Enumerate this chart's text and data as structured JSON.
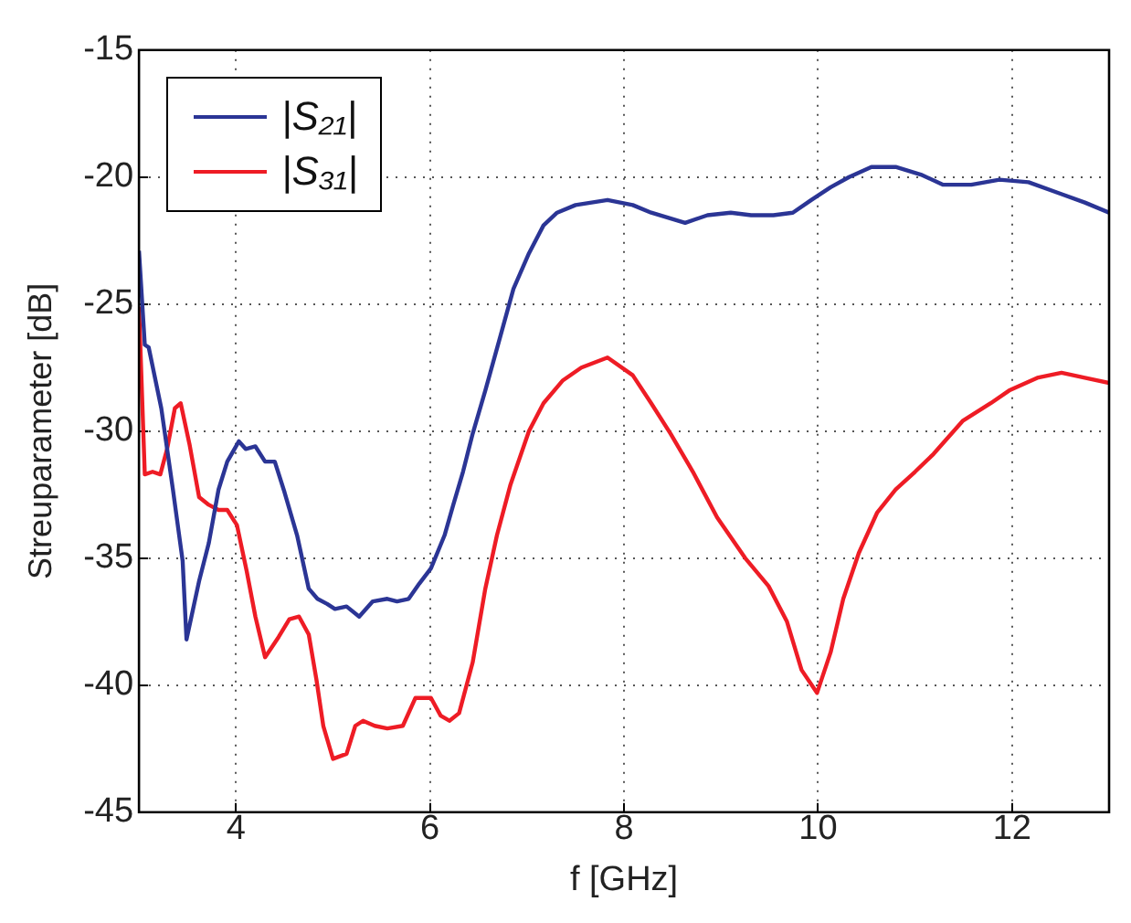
{
  "chart_data": {
    "type": "line",
    "xlabel": "f [GHz]",
    "ylabel": "Streuparameter [dB]",
    "xlim": [
      3,
      13
    ],
    "xticks": [
      4,
      6,
      8,
      10,
      12
    ],
    "ylim": [
      -45,
      -15
    ],
    "yticks": [
      -45,
      -40,
      -35,
      -30,
      -25,
      -20,
      -15
    ],
    "grid": true,
    "legend": "top left",
    "line_style": "solid",
    "marker": "none",
    "series": [
      {
        "name": "|S₂₁|",
        "color": "#2b3595",
        "x": [
          3.0,
          3.06,
          3.1,
          3.23,
          3.35,
          3.45,
          3.49,
          3.62,
          3.72,
          3.82,
          3.91,
          4.03,
          4.1,
          4.2,
          4.3,
          4.4,
          4.5,
          4.63,
          4.75,
          4.84,
          4.94,
          5.02,
          5.14,
          5.27,
          5.41,
          5.56,
          5.66,
          5.78,
          5.89,
          6.01,
          6.15,
          6.24,
          6.34,
          6.44,
          6.57,
          6.73,
          6.86,
          7.02,
          7.17,
          7.31,
          7.5,
          7.83,
          8.09,
          8.28,
          8.63,
          8.86,
          9.1,
          9.31,
          9.54,
          9.74,
          9.93,
          10.13,
          10.32,
          10.55,
          10.8,
          11.06,
          11.29,
          11.58,
          11.87,
          12.17,
          12.46,
          12.75,
          13.0
        ],
        "values": [
          -22.9,
          -26.6,
          -26.7,
          -29.1,
          -32.3,
          -35.1,
          -38.2,
          -35.9,
          -34.4,
          -32.3,
          -31.2,
          -30.4,
          -30.7,
          -30.6,
          -31.2,
          -31.2,
          -32.4,
          -34.1,
          -36.2,
          -36.6,
          -36.8,
          -37.0,
          -36.9,
          -37.3,
          -36.7,
          -36.6,
          -36.7,
          -36.6,
          -36.0,
          -35.4,
          -34.1,
          -32.9,
          -31.6,
          -30.1,
          -28.4,
          -26.2,
          -24.4,
          -23.0,
          -21.9,
          -21.4,
          -21.1,
          -20.9,
          -21.1,
          -21.4,
          -21.8,
          -21.5,
          -21.4,
          -21.5,
          -21.5,
          -21.4,
          -20.9,
          -20.4,
          -20.0,
          -19.6,
          -19.6,
          -19.9,
          -20.3,
          -20.3,
          -20.1,
          -20.2,
          -20.6,
          -21.0,
          -21.4
        ]
      },
      {
        "name": "|S₃₁|",
        "color": "#ee1c25",
        "x": [
          3.0,
          3.06,
          3.14,
          3.22,
          3.29,
          3.37,
          3.43,
          3.52,
          3.62,
          3.72,
          3.82,
          3.91,
          4.01,
          4.11,
          4.2,
          4.3,
          4.44,
          4.55,
          4.65,
          4.75,
          4.83,
          4.9,
          5.0,
          5.14,
          5.23,
          5.31,
          5.43,
          5.56,
          5.72,
          5.85,
          6.01,
          6.11,
          6.2,
          6.3,
          6.44,
          6.57,
          6.69,
          6.83,
          7.02,
          7.17,
          7.37,
          7.56,
          7.83,
          8.09,
          8.28,
          8.48,
          8.71,
          8.96,
          9.25,
          9.49,
          9.68,
          9.83,
          9.99,
          10.13,
          10.26,
          10.42,
          10.61,
          10.8,
          11.0,
          11.19,
          11.49,
          11.78,
          11.97,
          12.26,
          12.51,
          12.75,
          13.0
        ],
        "values": [
          -25.1,
          -31.7,
          -31.6,
          -31.7,
          -30.7,
          -29.1,
          -28.9,
          -30.5,
          -32.6,
          -32.9,
          -33.1,
          -33.1,
          -33.7,
          -35.5,
          -37.3,
          -38.9,
          -38.1,
          -37.4,
          -37.3,
          -38.0,
          -39.8,
          -41.6,
          -42.9,
          -42.7,
          -41.6,
          -41.4,
          -41.6,
          -41.7,
          -41.6,
          -40.5,
          -40.5,
          -41.2,
          -41.4,
          -41.1,
          -39.1,
          -36.2,
          -34.1,
          -32.1,
          -30.0,
          -28.9,
          -28.0,
          -27.5,
          -27.1,
          -27.8,
          -28.9,
          -30.1,
          -31.6,
          -33.4,
          -35.0,
          -36.1,
          -37.5,
          -39.4,
          -40.3,
          -38.7,
          -36.6,
          -34.8,
          -33.2,
          -32.3,
          -31.6,
          -30.9,
          -29.6,
          -28.9,
          -28.4,
          -27.9,
          -27.7,
          -27.9,
          -28.1
        ]
      }
    ]
  }
}
